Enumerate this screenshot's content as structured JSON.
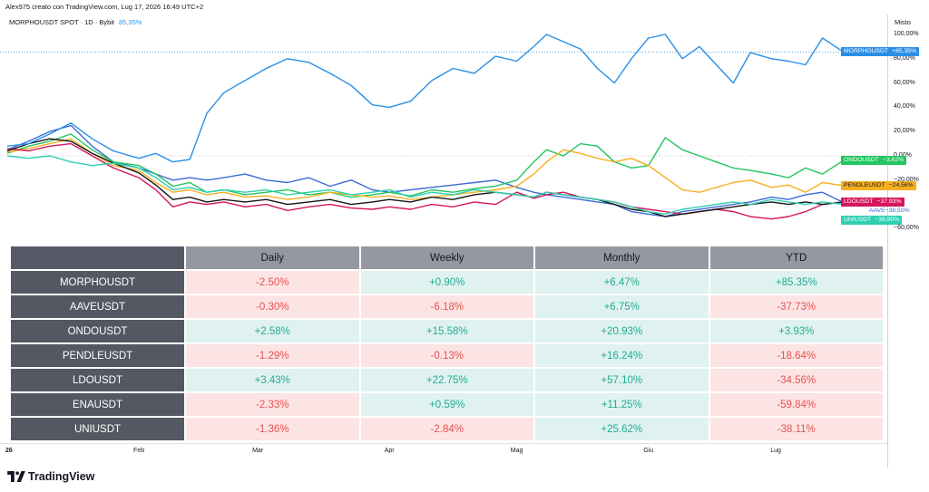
{
  "author_line": "Alex975 creato con TradingView.com, Lug 17, 2026 16:49 UTC+2",
  "legend": {
    "series": "MORPHOUSDT SPOT · 1D · Bybit",
    "value": "85,35%"
  },
  "scale_mode": "Misto",
  "brand": {
    "name": "TradingView",
    "logo": "tradingview-logo-icon"
  },
  "colors": {
    "MORPHOUSDT": "#2a8fe6",
    "AAVE": "#3d6ad6",
    "ONDOUSDT": "#22c55e",
    "PENDLEUSDT": "#f5b021",
    "LDOUSDT": "#d3165c",
    "ENAUSDT": "#151515",
    "UNIUSDT": "#2fcfb0"
  },
  "chart_data": {
    "type": "line",
    "x_start": "2026-01-01",
    "x_end": "2026-07-17",
    "x_ticks": [
      "26",
      "Feb",
      "Mar",
      "Apr",
      "Mag",
      "Giu",
      "Lug"
    ],
    "y_unit": "%",
    "ylim": [
      -70,
      110
    ],
    "y_ticks": [
      "100,00%",
      "80,00%",
      "60,00%",
      "40,00%",
      "20,00%",
      "0,00%",
      "−20,00%",
      "−60,00%"
    ],
    "grid": false,
    "series": [
      {
        "name": "MORPHOUSDT",
        "label": "MORPHOUSDT",
        "last_label": "+85,35%",
        "color": "#2a8fe6",
        "x": [
          "2026-01-01",
          "2026-01-06",
          "2026-01-11",
          "2026-01-16",
          "2026-01-21",
          "2026-01-26",
          "2026-02-01",
          "2026-02-05",
          "2026-02-09",
          "2026-02-13",
          "2026-02-17",
          "2026-02-21",
          "2026-02-26",
          "2026-03-03",
          "2026-03-08",
          "2026-03-13",
          "2026-03-18",
          "2026-03-23",
          "2026-03-28",
          "2026-04-01",
          "2026-04-06",
          "2026-04-11",
          "2026-04-16",
          "2026-04-21",
          "2026-04-26",
          "2026-05-01",
          "2026-05-05",
          "2026-05-08",
          "2026-05-12",
          "2026-05-16",
          "2026-05-20",
          "2026-05-24",
          "2026-05-28",
          "2026-06-01",
          "2026-06-05",
          "2026-06-09",
          "2026-06-13",
          "2026-06-17",
          "2026-06-21",
          "2026-06-25",
          "2026-06-30",
          "2026-07-04",
          "2026-07-08",
          "2026-07-12",
          "2026-07-17"
        ],
        "y": [
          8,
          10,
          18,
          27,
          14,
          4,
          -2,
          2,
          -5,
          -3,
          35,
          52,
          62,
          72,
          80,
          77,
          68,
          58,
          42,
          40,
          45,
          62,
          72,
          68,
          82,
          78,
          90,
          100,
          94,
          88,
          72,
          60,
          80,
          97,
          100,
          80,
          90,
          75,
          60,
          85,
          80,
          78,
          75,
          97,
          85.35
        ]
      },
      {
        "name": "AAVE",
        "label": "AAVE",
        "last_label": "−38,50%",
        "color": "#3d6ad6",
        "x": [
          "2026-01-01",
          "2026-01-06",
          "2026-01-11",
          "2026-01-16",
          "2026-01-21",
          "2026-01-26",
          "2026-02-01",
          "2026-02-05",
          "2026-02-09",
          "2026-02-13",
          "2026-02-17",
          "2026-02-21",
          "2026-02-26",
          "2026-03-03",
          "2026-03-08",
          "2026-03-13",
          "2026-03-18",
          "2026-03-23",
          "2026-03-28",
          "2026-04-01",
          "2026-04-06",
          "2026-04-11",
          "2026-04-16",
          "2026-04-21",
          "2026-04-26",
          "2026-05-01",
          "2026-05-05",
          "2026-05-08",
          "2026-05-12",
          "2026-05-16",
          "2026-05-20",
          "2026-05-24",
          "2026-05-28",
          "2026-06-01",
          "2026-06-05",
          "2026-06-09",
          "2026-06-13",
          "2026-06-17",
          "2026-06-21",
          "2026-06-25",
          "2026-06-30",
          "2026-07-04",
          "2026-07-08",
          "2026-07-12",
          "2026-07-17"
        ],
        "y": [
          5,
          12,
          20,
          25,
          8,
          -5,
          -10,
          -15,
          -20,
          -18,
          -20,
          -18,
          -15,
          -20,
          -22,
          -18,
          -25,
          -20,
          -28,
          -30,
          -28,
          -26,
          -24,
          -22,
          -20,
          -26,
          -30,
          -32,
          -34,
          -36,
          -38,
          -40,
          -46,
          -48,
          -50,
          -46,
          -44,
          -42,
          -40,
          -38,
          -34,
          -36,
          -32,
          -30,
          -38.5
        ]
      },
      {
        "name": "ONDOUSDT",
        "label": "ONDOUSDT",
        "last_label": "−3,62%",
        "color": "#22c55e",
        "x": [
          "2026-01-01",
          "2026-01-06",
          "2026-01-11",
          "2026-01-16",
          "2026-01-21",
          "2026-01-26",
          "2026-02-01",
          "2026-02-05",
          "2026-02-09",
          "2026-02-13",
          "2026-02-17",
          "2026-02-21",
          "2026-02-26",
          "2026-03-03",
          "2026-03-08",
          "2026-03-13",
          "2026-03-18",
          "2026-03-23",
          "2026-03-28",
          "2026-04-01",
          "2026-04-06",
          "2026-04-11",
          "2026-04-16",
          "2026-04-21",
          "2026-04-26",
          "2026-05-01",
          "2026-05-05",
          "2026-05-08",
          "2026-05-12",
          "2026-05-16",
          "2026-05-20",
          "2026-05-24",
          "2026-05-28",
          "2026-06-01",
          "2026-06-05",
          "2026-06-09",
          "2026-06-13",
          "2026-06-17",
          "2026-06-21",
          "2026-06-25",
          "2026-06-30",
          "2026-07-04",
          "2026-07-08",
          "2026-07-12",
          "2026-07-17"
        ],
        "y": [
          2,
          8,
          12,
          18,
          5,
          -5,
          -8,
          -15,
          -25,
          -22,
          -30,
          -28,
          -32,
          -30,
          -28,
          -32,
          -30,
          -34,
          -32,
          -30,
          -33,
          -28,
          -30,
          -27,
          -25,
          -20,
          -5,
          5,
          0,
          10,
          8,
          -5,
          -10,
          -8,
          15,
          5,
          0,
          -5,
          -10,
          -12,
          -15,
          -18,
          -10,
          -15,
          -3.62
        ]
      },
      {
        "name": "PENDLEUSDT",
        "label": "PENDLEUSDT",
        "last_label": "−24,56%",
        "color": "#f5b021",
        "x": [
          "2026-01-01",
          "2026-01-06",
          "2026-01-11",
          "2026-01-16",
          "2026-01-21",
          "2026-01-26",
          "2026-02-01",
          "2026-02-05",
          "2026-02-09",
          "2026-02-13",
          "2026-02-17",
          "2026-02-21",
          "2026-02-26",
          "2026-03-03",
          "2026-03-08",
          "2026-03-13",
          "2026-03-18",
          "2026-03-23",
          "2026-03-28",
          "2026-04-01",
          "2026-04-06",
          "2026-04-11",
          "2026-04-16",
          "2026-04-21",
          "2026-04-26",
          "2026-05-01",
          "2026-05-05",
          "2026-05-08",
          "2026-05-12",
          "2026-05-16",
          "2026-05-20",
          "2026-05-24",
          "2026-05-28",
          "2026-06-01",
          "2026-06-05",
          "2026-06-09",
          "2026-06-13",
          "2026-06-17",
          "2026-06-21",
          "2026-06-25",
          "2026-06-30",
          "2026-07-04",
          "2026-07-08",
          "2026-07-12",
          "2026-07-17"
        ],
        "y": [
          3,
          6,
          10,
          14,
          2,
          -8,
          -12,
          -22,
          -30,
          -28,
          -32,
          -30,
          -34,
          -33,
          -36,
          -34,
          -30,
          -32,
          -34,
          -33,
          -36,
          -34,
          -32,
          -30,
          -28,
          -25,
          -15,
          -5,
          5,
          2,
          -2,
          -5,
          -2,
          -8,
          -18,
          -28,
          -30,
          -26,
          -22,
          -20,
          -26,
          -24,
          -30,
          -22,
          -24.56
        ]
      },
      {
        "name": "LDOUSDT",
        "label": "LDOUSDT",
        "last_label": "−37,93%",
        "color": "#d3165c",
        "x": [
          "2026-01-01",
          "2026-01-06",
          "2026-01-11",
          "2026-01-16",
          "2026-01-21",
          "2026-01-26",
          "2026-02-01",
          "2026-02-05",
          "2026-02-09",
          "2026-02-13",
          "2026-02-17",
          "2026-02-21",
          "2026-02-26",
          "2026-03-03",
          "2026-03-08",
          "2026-03-13",
          "2026-03-18",
          "2026-03-23",
          "2026-03-28",
          "2026-04-01",
          "2026-04-06",
          "2026-04-11",
          "2026-04-16",
          "2026-04-21",
          "2026-04-26",
          "2026-05-01",
          "2026-05-05",
          "2026-05-08",
          "2026-05-12",
          "2026-05-16",
          "2026-05-20",
          "2026-05-24",
          "2026-05-28",
          "2026-06-01",
          "2026-06-05",
          "2026-06-09",
          "2026-06-13",
          "2026-06-17",
          "2026-06-21",
          "2026-06-25",
          "2026-06-30",
          "2026-07-04",
          "2026-07-08",
          "2026-07-12",
          "2026-07-17"
        ],
        "y": [
          6,
          4,
          8,
          10,
          0,
          -10,
          -18,
          -28,
          -42,
          -38,
          -40,
          -38,
          -42,
          -40,
          -45,
          -42,
          -40,
          -43,
          -44,
          -42,
          -44,
          -40,
          -42,
          -38,
          -40,
          -30,
          -35,
          -32,
          -30,
          -34,
          -36,
          -38,
          -42,
          -44,
          -46,
          -48,
          -46,
          -44,
          -46,
          -50,
          -52,
          -50,
          -46,
          -40,
          -37.93
        ]
      },
      {
        "name": "ENAUSDT",
        "label": "ENAUSDT",
        "last_label": "",
        "color": "#151515",
        "x": [
          "2026-01-01",
          "2026-01-06",
          "2026-01-11",
          "2026-01-16",
          "2026-01-21",
          "2026-01-26",
          "2026-02-01",
          "2026-02-05",
          "2026-02-09",
          "2026-02-13",
          "2026-02-17",
          "2026-02-21",
          "2026-02-26",
          "2026-03-03",
          "2026-03-08",
          "2026-03-13",
          "2026-03-18",
          "2026-03-23",
          "2026-03-28",
          "2026-04-01",
          "2026-04-06",
          "2026-04-11",
          "2026-04-16",
          "2026-04-21",
          "2026-04-26",
          "2026-05-01",
          "2026-05-05",
          "2026-05-08",
          "2026-05-12",
          "2026-05-16",
          "2026-05-20",
          "2026-05-24",
          "2026-05-28",
          "2026-06-01",
          "2026-06-05",
          "2026-06-09",
          "2026-06-13",
          "2026-06-17",
          "2026-06-21",
          "2026-06-25",
          "2026-06-30",
          "2026-07-04",
          "2026-07-08",
          "2026-07-12",
          "2026-07-17"
        ],
        "y": [
          4,
          10,
          14,
          12,
          2,
          -6,
          -14,
          -24,
          -36,
          -34,
          -38,
          -36,
          -38,
          -36,
          -40,
          -38,
          -36,
          -40,
          -38,
          -36,
          -38,
          -34,
          -36,
          -32,
          -30,
          -32,
          -34,
          -30,
          -32,
          -34,
          -36,
          -40,
          -44,
          -46,
          -50,
          -48,
          -46,
          -44,
          -42,
          -40,
          -38,
          -40,
          -38,
          -40,
          -38
        ]
      },
      {
        "name": "UNIUSDT",
        "label": "UNIUSDT",
        "last_label": "−39,90%",
        "color": "#2fcfb0",
        "x": [
          "2026-01-01",
          "2026-01-06",
          "2026-01-11",
          "2026-01-16",
          "2026-01-21",
          "2026-01-26",
          "2026-02-01",
          "2026-02-05",
          "2026-02-09",
          "2026-02-13",
          "2026-02-17",
          "2026-02-21",
          "2026-02-26",
          "2026-03-03",
          "2026-03-08",
          "2026-03-13",
          "2026-03-18",
          "2026-03-23",
          "2026-03-28",
          "2026-04-01",
          "2026-04-06",
          "2026-04-11",
          "2026-04-16",
          "2026-04-21",
          "2026-04-26",
          "2026-05-01",
          "2026-05-05",
          "2026-05-08",
          "2026-05-12",
          "2026-05-16",
          "2026-05-20",
          "2026-05-24",
          "2026-05-28",
          "2026-06-01",
          "2026-06-05",
          "2026-06-09",
          "2026-06-13",
          "2026-06-17",
          "2026-06-21",
          "2026-06-25",
          "2026-06-30",
          "2026-07-04",
          "2026-07-08",
          "2026-07-12",
          "2026-07-17"
        ],
        "y": [
          0,
          -2,
          0,
          -5,
          -8,
          -6,
          -10,
          -18,
          -28,
          -26,
          -30,
          -28,
          -30,
          -28,
          -32,
          -30,
          -28,
          -32,
          -30,
          -28,
          -34,
          -30,
          -32,
          -28,
          -30,
          -32,
          -34,
          -30,
          -32,
          -34,
          -36,
          -38,
          -42,
          -46,
          -48,
          -44,
          -42,
          -40,
          -38,
          -40,
          -36,
          -38,
          -40,
          -38,
          -39.9
        ]
      }
    ]
  },
  "table": {
    "headers": [
      "Daily",
      "Weekly",
      "Monthly",
      "YTD"
    ],
    "rows": [
      {
        "name": "MORPHOUSDT",
        "cells": [
          {
            "v": "-2.50%",
            "s": "neg"
          },
          {
            "v": "+0.90%",
            "s": "pos"
          },
          {
            "v": "+6.47%",
            "s": "pos"
          },
          {
            "v": "+85.35%",
            "s": "pos"
          }
        ]
      },
      {
        "name": "AAVEUSDT",
        "cells": [
          {
            "v": "-0.30%",
            "s": "neg"
          },
          {
            "v": "-6.18%",
            "s": "neg"
          },
          {
            "v": "+6.75%",
            "s": "pos"
          },
          {
            "v": "-37.73%",
            "s": "neg"
          }
        ]
      },
      {
        "name": "ONDOUSDT",
        "cells": [
          {
            "v": "+2.58%",
            "s": "pos"
          },
          {
            "v": "+15.58%",
            "s": "pos"
          },
          {
            "v": "+20.93%",
            "s": "pos"
          },
          {
            "v": "+3.93%",
            "s": "pos"
          }
        ]
      },
      {
        "name": "PENDLEUSDT",
        "cells": [
          {
            "v": "-1.29%",
            "s": "neg"
          },
          {
            "v": "-0.13%",
            "s": "neg"
          },
          {
            "v": "+16.24%",
            "s": "pos"
          },
          {
            "v": "-18.64%",
            "s": "neg"
          }
        ]
      },
      {
        "name": "LDOUSDT",
        "cells": [
          {
            "v": "+3.43%",
            "s": "pos"
          },
          {
            "v": "+22.75%",
            "s": "pos"
          },
          {
            "v": "+57.10%",
            "s": "pos"
          },
          {
            "v": "-34.56%",
            "s": "neg"
          }
        ]
      },
      {
        "name": "ENAUSDT",
        "cells": [
          {
            "v": "-2.33%",
            "s": "neg"
          },
          {
            "v": "+0.59%",
            "s": "pos"
          },
          {
            "v": "+11.25%",
            "s": "pos"
          },
          {
            "v": "-59.84%",
            "s": "neg"
          }
        ]
      },
      {
        "name": "UNIUSDT",
        "cells": [
          {
            "v": "-1.36%",
            "s": "neg"
          },
          {
            "v": "-2.84%",
            "s": "neg"
          },
          {
            "v": "+25.62%",
            "s": "pos"
          },
          {
            "v": "-38.11%",
            "s": "neg"
          }
        ]
      }
    ]
  }
}
